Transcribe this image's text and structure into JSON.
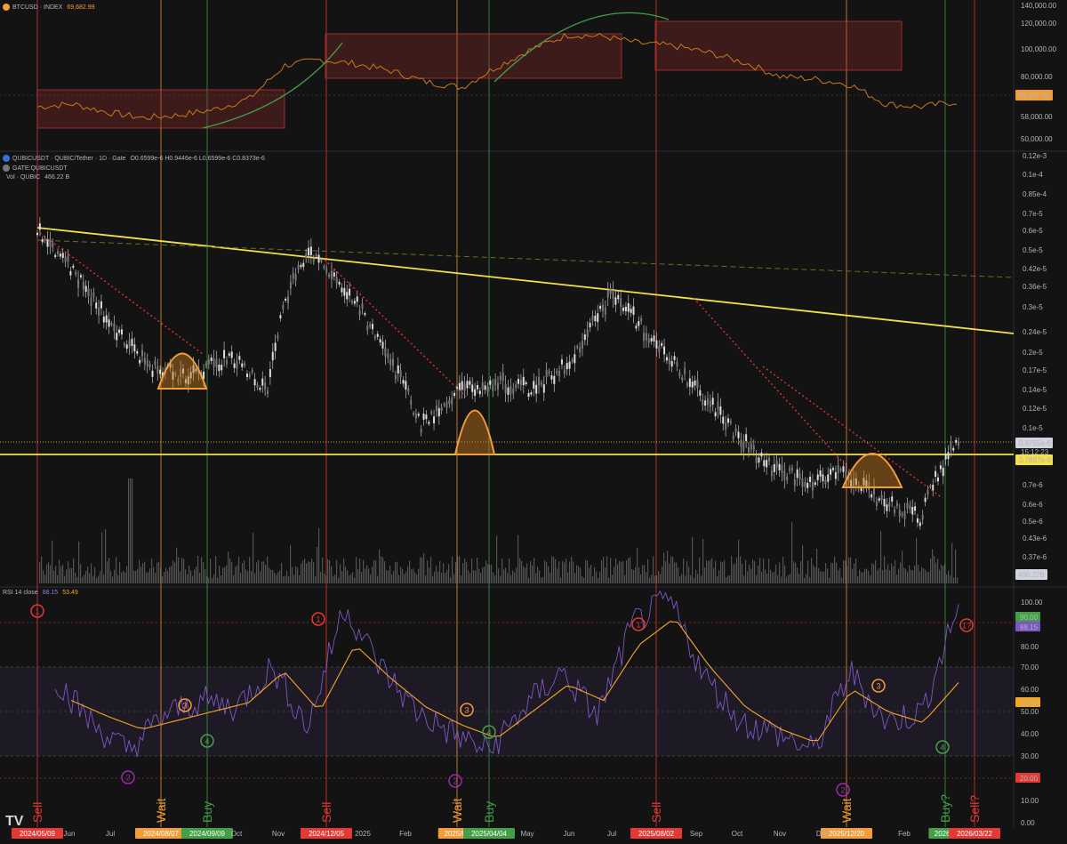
{
  "btc_panel": {
    "symbol": "BTCUSD · INDEX",
    "last": "69,682.99",
    "price_ticks": [
      "140,000.00",
      "120,000.00",
      "100,000.00",
      "80,000.00",
      "69,682.99",
      "58,000.00",
      "50,000.00"
    ]
  },
  "main_panel": {
    "legend_title": "QUBICUSDT · QUBIC/Tether · 1D · Gate",
    "ohlc": "O0.6599e-6  H0.9446e-6  L0.6599e-6  C0.8373e-6",
    "compare_symbol": "GATE:QUBICUSDT",
    "volume_label": "Vol · QUBIC",
    "volume_value": "466.22 B",
    "price_ticks": [
      "0.12e-3",
      "0.1e-4",
      "0.85e-4",
      "0.7e-5",
      "0.6e-5",
      "0.5e-5",
      "0.42e-5",
      "0.36e-5",
      "0.3e-5",
      "0.24e-5",
      "0.2e-5",
      "0.17e-5",
      "0.14e-5",
      "0.12e-5",
      "0.1e-5",
      "0.7e-6",
      "0.6e-6",
      "0.5e-6",
      "0.43e-6",
      "0.37e-6",
      "0.31e-6"
    ],
    "current_price": "0.8755e-6",
    "countdown": "15:12:23",
    "support_price": "0.7897e-6",
    "volume_tag": "466.22B"
  },
  "rsi_panel": {
    "label": "RSI 14 close",
    "rsi_value": "88.15",
    "ma_value": "53.49",
    "ticks": [
      "100.00",
      "90.00",
      "88.15",
      "80.00",
      "70.00",
      "60.00",
      "53.49",
      "50.00",
      "40.00",
      "30.00",
      "20.00",
      "10.00",
      "0.00"
    ]
  },
  "signals": [
    {
      "label": "Sell",
      "date": "2024/05/09",
      "color": "#e53935"
    },
    {
      "label": "Wait",
      "date": "2024/08/07",
      "color": "#f29d38"
    },
    {
      "label": "Buy",
      "date": "2024/09/09",
      "color": "#43a047"
    },
    {
      "label": "Sell",
      "date": "2024/12/05",
      "color": "#e53935"
    },
    {
      "label": "Wait",
      "date": "2025/03",
      "color": "#f29d38"
    },
    {
      "label": "Buy",
      "date": "2025/04/04",
      "color": "#43a047"
    },
    {
      "label": "Sell",
      "date": "2025/08/02",
      "color": "#e53935"
    },
    {
      "label": "Wait",
      "date": "2025/12/20",
      "color": "#f29d38"
    },
    {
      "label": "Buy?",
      "date": "2026/0",
      "color": "#43a047"
    },
    {
      "label": "Sell?",
      "date": "2026/03/22",
      "color": "#e53935"
    }
  ],
  "time_axis": [
    "Jun",
    "Jul",
    "Oct",
    "Nov",
    "2025",
    "Feb",
    "May",
    "Jun",
    "Jul",
    "Sep",
    "Oct",
    "Nov",
    "Dec",
    "Feb"
  ],
  "cycle_markers": [
    "1",
    "2",
    "3",
    "4",
    "1",
    "2",
    "3",
    "4",
    "1",
    "2",
    "3",
    "4",
    "1?"
  ],
  "brand": "TV",
  "colors": {
    "background": "#131313",
    "sell": "#e53935",
    "wait": "#f29d38",
    "buy": "#43a047",
    "trendline": "#f5e04a",
    "btc_line": "#c77a1c",
    "rsi_line": "#7e57c2",
    "rsi_ma": "#f5a623"
  },
  "chart_data": [
    {
      "type": "line",
      "series": [
        {
          "name": "BTCUSD",
          "values": [
            66000,
            68000,
            62000,
            58000,
            60000,
            64000,
            72000,
            96000,
            100000,
            97000,
            92000,
            84000,
            80000,
            95000,
            108000,
            118000,
            117000,
            112000,
            110000,
            105000,
            98000,
            88000,
            86000,
            82000,
            68000,
            66000,
            69683
          ]
        }
      ],
      "ylim": [
        50000,
        140000
      ]
    },
    {
      "type": "line",
      "series": [
        {
          "name": "QUBICUSDT",
          "values": [
            6.2e-06,
            4e-06,
            2.4e-06,
            1.7e-06,
            1.6e-06,
            1.9e-06,
            1.4e-06,
            5e-06,
            3.6e-06,
            2e-06,
            1e-06,
            1.4e-06,
            1.5e-06,
            1.4e-06,
            1.9e-06,
            3.4e-06,
            2.2e-06,
            1.5e-06,
            1e-06,
            7e-07,
            6e-07,
            6.5e-07,
            5e-07,
            4.3e-07,
            8.755e-07
          ]
        }
      ]
    },
    {
      "type": "line",
      "series": [
        {
          "name": "RSI",
          "values": [
            55,
            35,
            22,
            38,
            45,
            42,
            60,
            33,
            88,
            60,
            40,
            30,
            22,
            42,
            58,
            38,
            80,
            90,
            55,
            35,
            30,
            22,
            58,
            35,
            40,
            88
          ]
        },
        {
          "name": "RSI MA",
          "values": [
            45,
            38,
            32,
            36,
            40,
            44,
            58,
            40,
            70,
            55,
            42,
            34,
            28,
            40,
            52,
            45,
            70,
            82,
            60,
            42,
            32,
            26,
            50,
            40,
            35,
            53
          ]
        }
      ],
      "ylim": [
        0,
        100
      ]
    }
  ]
}
